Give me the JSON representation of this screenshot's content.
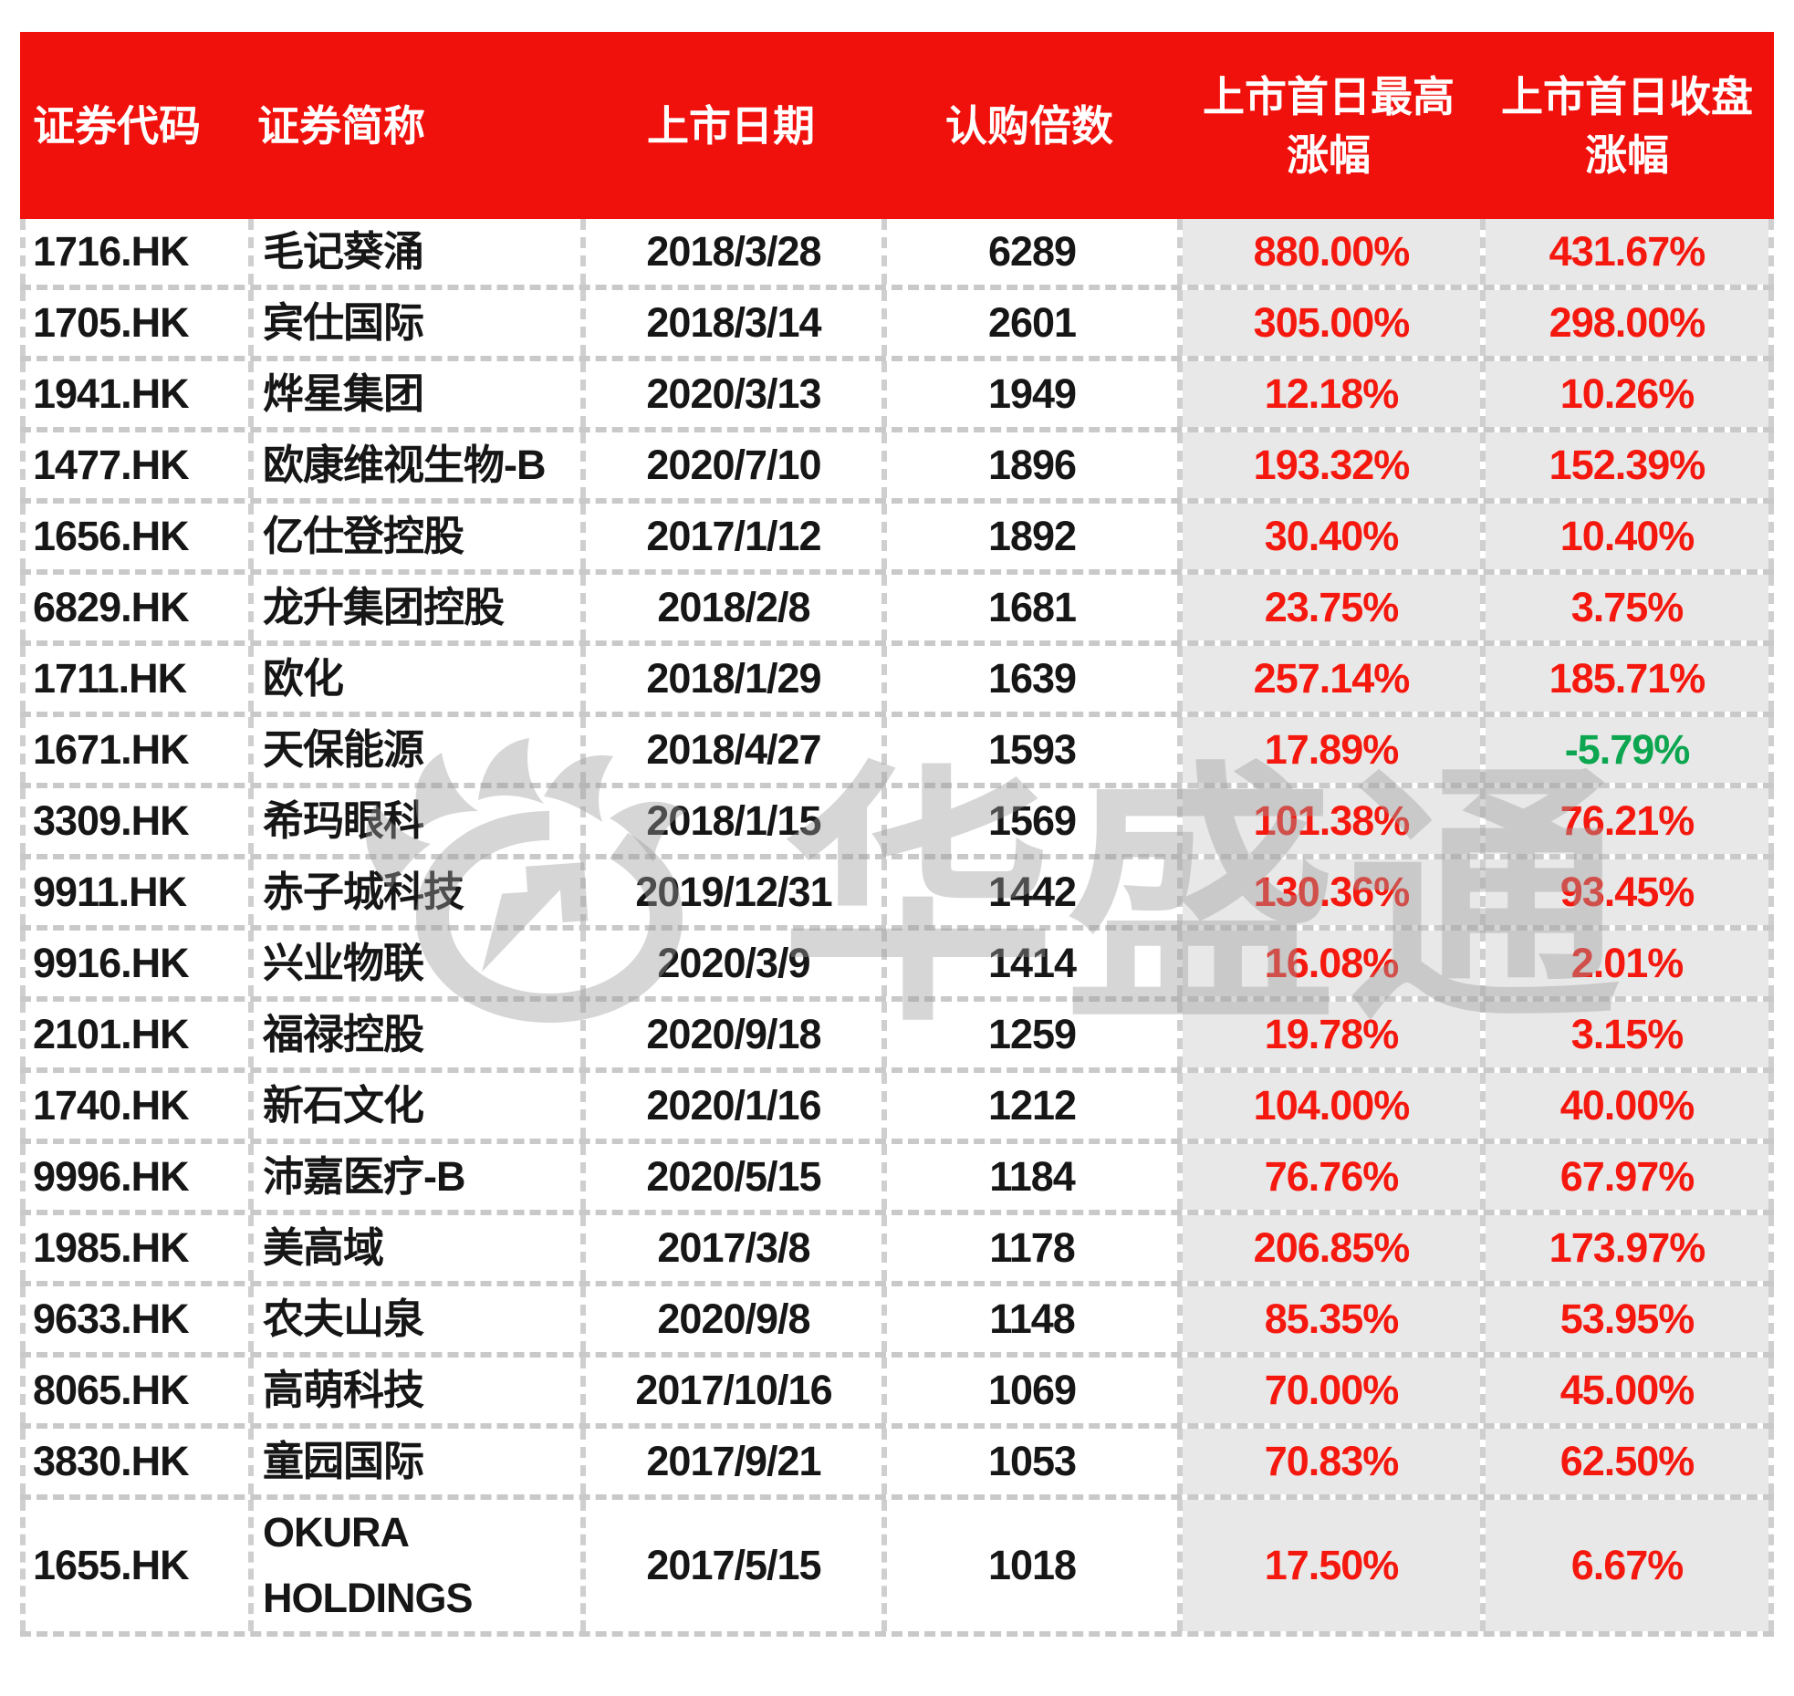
{
  "chart_data": {
    "type": "table",
    "title": "",
    "columns": [
      "证券代码",
      "证券简称",
      "上市日期",
      "认购倍数",
      "上市首日最高涨幅",
      "上市首日收盘涨幅"
    ],
    "rows": [
      {
        "code": "1716.HK",
        "name": "毛记葵涌",
        "date": "2018/3/28",
        "multiple": "6289",
        "high": "880.00%",
        "close": "431.67%"
      },
      {
        "code": "1705.HK",
        "name": "宾仕国际",
        "date": "2018/3/14",
        "multiple": "2601",
        "high": "305.00%",
        "close": "298.00%"
      },
      {
        "code": "1941.HK",
        "name": "烨星集团",
        "date": "2020/3/13",
        "multiple": "1949",
        "high": "12.18%",
        "close": "10.26%"
      },
      {
        "code": "1477.HK",
        "name": "欧康维视生物-B",
        "date": "2020/7/10",
        "multiple": "1896",
        "high": "193.32%",
        "close": "152.39%"
      },
      {
        "code": "1656.HK",
        "name": "亿仕登控股",
        "date": "2017/1/12",
        "multiple": "1892",
        "high": "30.40%",
        "close": "10.40%"
      },
      {
        "code": "6829.HK",
        "name": "龙升集团控股",
        "date": "2018/2/8",
        "multiple": "1681",
        "high": "23.75%",
        "close": "3.75%"
      },
      {
        "code": "1711.HK",
        "name": "欧化",
        "date": "2018/1/29",
        "multiple": "1639",
        "high": "257.14%",
        "close": "185.71%"
      },
      {
        "code": "1671.HK",
        "name": "天保能源",
        "date": "2018/4/27",
        "multiple": "1593",
        "high": "17.89%",
        "close": "-5.79%"
      },
      {
        "code": "3309.HK",
        "name": "希玛眼科",
        "date": "2018/1/15",
        "multiple": "1569",
        "high": "101.38%",
        "close": "76.21%"
      },
      {
        "code": "9911.HK",
        "name": "赤子城科技",
        "date": "2019/12/31",
        "multiple": "1442",
        "high": "130.36%",
        "close": "93.45%"
      },
      {
        "code": "9916.HK",
        "name": "兴业物联",
        "date": "2020/3/9",
        "multiple": "1414",
        "high": "16.08%",
        "close": "2.01%"
      },
      {
        "code": "2101.HK",
        "name": "福禄控股",
        "date": "2020/9/18",
        "multiple": "1259",
        "high": "19.78%",
        "close": "3.15%"
      },
      {
        "code": "1740.HK",
        "name": "新石文化",
        "date": "2020/1/16",
        "multiple": "1212",
        "high": "104.00%",
        "close": "40.00%"
      },
      {
        "code": "9996.HK",
        "name": "沛嘉医疗-B",
        "date": "2020/5/15",
        "multiple": "1184",
        "high": "76.76%",
        "close": "67.97%"
      },
      {
        "code": "1985.HK",
        "name": "美高域",
        "date": "2017/3/8",
        "multiple": "1178",
        "high": "206.85%",
        "close": "173.97%"
      },
      {
        "code": "9633.HK",
        "name": "农夫山泉",
        "date": "2020/9/8",
        "multiple": "1148",
        "high": "85.35%",
        "close": "53.95%"
      },
      {
        "code": "8065.HK",
        "name": "高萌科技",
        "date": "2017/10/16",
        "multiple": "1069",
        "high": "70.00%",
        "close": "45.00%"
      },
      {
        "code": "3830.HK",
        "name": "童园国际",
        "date": "2017/9/21",
        "multiple": "1053",
        "high": "70.83%",
        "close": "62.50%"
      },
      {
        "code": "1655.HK",
        "name": "OKURA HOLDINGS",
        "date": "2017/5/15",
        "multiple": "1018",
        "high": "17.50%",
        "close": "6.67%"
      }
    ]
  },
  "header": {
    "col1": "证券代码",
    "col2": "证券简称",
    "col3": "上市日期",
    "col4": "认购倍数",
    "col5_line1": "上市首日最高",
    "col5_line2": "涨幅",
    "col6_line1": "上市首日收盘",
    "col6_line2": "涨幅"
  },
  "watermark": {
    "text": "华盛通"
  },
  "colors": {
    "header_bg": "#f0100c",
    "positive_text": "#f5180e",
    "negative_text": "#0ba64f",
    "highlight_column_bg": "#e8e8e8",
    "dashed_grid": "#c9c9c9"
  }
}
